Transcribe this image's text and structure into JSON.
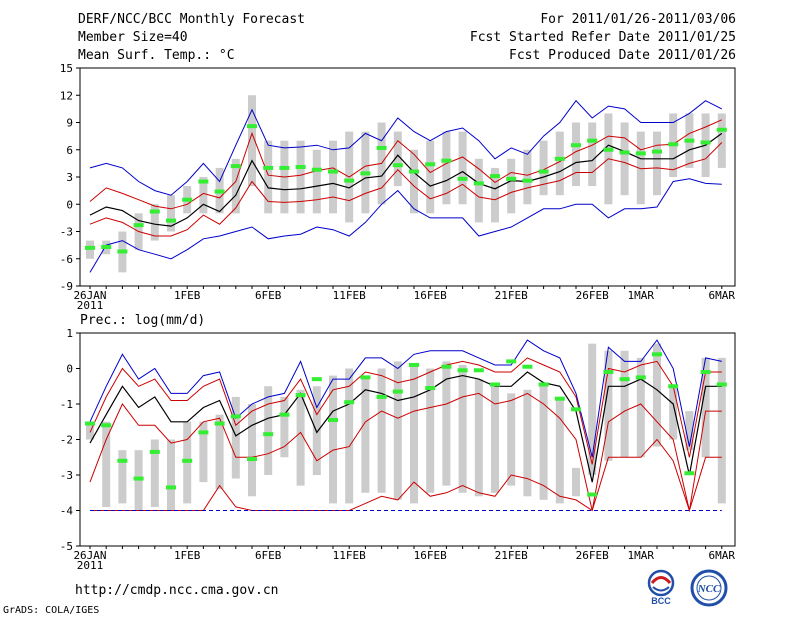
{
  "header": {
    "title": "DERF/NCC/BCC Monthly Forecast",
    "member_size": "Member Size=40",
    "variable1": "Mean Surf. Temp.: °C",
    "for_period": "For 2011/01/26-2011/03/06",
    "fcst_started": "Fcst Started Refer Date 2011/01/25",
    "fcst_produced": "Fcst Produced Date 2011/01/26"
  },
  "footer": {
    "url": "http://cmdp.ncc.cma.gov.cn",
    "grads": "GrADS: COLA/IGES",
    "logo_left_text": "BCC",
    "logo_right_text": "NCC"
  },
  "colors": {
    "bar": "#cccccc",
    "ensemble_mean": "#000000",
    "spread_inner": "#cc0000",
    "spread_outer": "#0000cc",
    "marker": "#33ee33",
    "zero_dash": "#0000cc"
  },
  "chart_data": [
    {
      "type": "line",
      "title": "Mean Surf. Temp.: °C",
      "xlabel": "",
      "ylabel": "°C",
      "ylim": [
        -9,
        15
      ],
      "yticks": [
        -9,
        -6,
        -3,
        0,
        3,
        6,
        9,
        12,
        15
      ],
      "x_tick_labels": [
        {
          "day": 0,
          "label": "26JAN"
        },
        {
          "day": 6,
          "label": "1FEB"
        },
        {
          "day": 11,
          "label": "6FEB"
        },
        {
          "day": 16,
          "label": "11FEB"
        },
        {
          "day": 21,
          "label": "16FEB"
        },
        {
          "day": 26,
          "label": "21FEB"
        },
        {
          "day": 31,
          "label": "26FEB"
        },
        {
          "day": 34,
          "label": "1MAR"
        },
        {
          "day": 39,
          "label": "6MAR"
        }
      ],
      "year_label": "2011",
      "bars_low": [
        -6,
        -5.5,
        -7.5,
        -5,
        -4,
        -3,
        -1,
        -1,
        -1,
        -1,
        2,
        -1,
        -1,
        -1,
        -1,
        -1,
        -2,
        -1,
        0,
        2,
        -1,
        -1,
        0,
        0,
        -2,
        -2,
        -1,
        0,
        1,
        1,
        2,
        2,
        0,
        1,
        0,
        1,
        3,
        4,
        3,
        4
      ],
      "bars_high": [
        -4,
        -4,
        -3,
        -1,
        0,
        1,
        2,
        3,
        4,
        5,
        12,
        7,
        7,
        7,
        6,
        7,
        8,
        8,
        9,
        8,
        6,
        7,
        8,
        8,
        5,
        4,
        5,
        6,
        7,
        8,
        9,
        9,
        10,
        9,
        8,
        8,
        10,
        10,
        10,
        10
      ],
      "series": [
        {
          "name": "ensemble mean",
          "values": [
            -1.2,
            -0.3,
            -0.7,
            -1.8,
            -2.2,
            -2.4,
            -1.5,
            0.0,
            -0.8,
            1.0,
            4.8,
            1.8,
            1.6,
            1.7,
            2.0,
            2.3,
            1.8,
            2.9,
            3.1,
            5.4,
            3.5,
            2.0,
            2.6,
            3.6,
            2.3,
            1.7,
            2.6,
            2.5,
            3.0,
            3.6,
            4.6,
            4.8,
            6.5,
            5.8,
            5.0,
            5.0,
            5.0,
            6.0,
            6.5,
            7.8
          ]
        },
        {
          "name": "upper inner",
          "values": [
            0.3,
            1.8,
            1.2,
            0.5,
            -0.2,
            -0.5,
            0.0,
            1.2,
            0.7,
            2.5,
            7.8,
            3.2,
            3.0,
            3.2,
            3.7,
            4.0,
            3.0,
            4.2,
            4.5,
            7.0,
            5.5,
            3.5,
            4.5,
            5.2,
            3.9,
            2.4,
            3.5,
            3.2,
            3.8,
            4.7,
            5.8,
            6.5,
            7.5,
            7.3,
            6.0,
            6.5,
            6.6,
            7.8,
            8.5,
            9.3
          ]
        },
        {
          "name": "lower inner",
          "values": [
            -2.2,
            -1.5,
            -2.0,
            -3.0,
            -3.5,
            -3.5,
            -2.8,
            -1.2,
            -2.2,
            -0.4,
            2.5,
            0.3,
            0.2,
            0.3,
            0.5,
            0.8,
            0.4,
            1.2,
            1.8,
            3.8,
            2.0,
            0.6,
            1.2,
            2.2,
            0.8,
            0.5,
            1.3,
            1.8,
            2.2,
            2.6,
            3.5,
            3.5,
            5.0,
            4.6,
            3.9,
            4.0,
            3.8,
            4.5,
            5.0,
            6.8
          ]
        },
        {
          "name": "upper outer",
          "values": [
            4.0,
            4.5,
            4.0,
            2.5,
            1.5,
            1.0,
            2.5,
            4.5,
            2.5,
            6.5,
            10.4,
            6.5,
            6.2,
            6.3,
            6.5,
            6.0,
            6.2,
            7.8,
            7.0,
            9.5,
            8.0,
            7.0,
            8.0,
            8.4,
            7.0,
            5.0,
            6.2,
            5.5,
            7.5,
            9.0,
            11.4,
            9.5,
            10.8,
            10.5,
            9.0,
            9.0,
            9.0,
            10.0,
            11.4,
            10.5
          ]
        },
        {
          "name": "lower outer",
          "values": [
            -7.5,
            -4.5,
            -4.0,
            -5.0,
            -5.5,
            -6.0,
            -5.0,
            -3.8,
            -3.5,
            -3.0,
            -2.5,
            -3.8,
            -3.5,
            -3.3,
            -2.5,
            -2.8,
            -3.5,
            -2.0,
            0.0,
            1.5,
            -0.5,
            -1.5,
            -1.5,
            -1.5,
            -3.5,
            -3.0,
            -2.5,
            -1.5,
            -0.5,
            -0.5,
            0.0,
            0.0,
            -1.5,
            -0.5,
            -0.5,
            -0.3,
            2.5,
            2.8,
            2.3,
            2.2
          ]
        }
      ],
      "markers": [
        -4.8,
        -4.7,
        -5.2,
        -2.3,
        -0.8,
        -1.8,
        0.5,
        2.5,
        1.4,
        4.2,
        8.6,
        4.0,
        4.0,
        4.1,
        3.8,
        3.6,
        2.6,
        3.4,
        6.2,
        4.3,
        3.6,
        4.4,
        4.8,
        2.8,
        2.3,
        3.1,
        2.8,
        2.6,
        3.6,
        5.0,
        6.5,
        7.0,
        6.0,
        5.7,
        5.6,
        5.8,
        6.6,
        7.0,
        6.8,
        8.2
      ]
    },
    {
      "type": "line",
      "title": "Prec.: log(mm/d)",
      "xlabel": "",
      "ylabel": "log(mm/d)",
      "ylim": [
        -5,
        1
      ],
      "yticks": [
        -5,
        -4,
        -3,
        -2,
        -1,
        0,
        1
      ],
      "x_tick_labels": [
        {
          "day": 0,
          "label": "26JAN"
        },
        {
          "day": 6,
          "label": "1FEB"
        },
        {
          "day": 11,
          "label": "6FEB"
        },
        {
          "day": 16,
          "label": "11FEB"
        },
        {
          "day": 21,
          "label": "16FEB"
        },
        {
          "day": 26,
          "label": "21FEB"
        },
        {
          "day": 31,
          "label": "26FEB"
        },
        {
          "day": 34,
          "label": "1MAR"
        },
        {
          "day": 39,
          "label": "6MAR"
        }
      ],
      "year_label": "2011",
      "bars_low": [
        -2.0,
        -3.9,
        -3.8,
        -4.0,
        -3.9,
        -4.0,
        -3.8,
        -3.2,
        -3.4,
        -3.1,
        -3.6,
        -3.0,
        -2.5,
        -3.3,
        -3.0,
        -3.8,
        -3.8,
        -3.5,
        -3.5,
        -3.7,
        -3.8,
        -3.5,
        -3.3,
        -3.5,
        -3.6,
        -3.5,
        -3.3,
        -3.6,
        -3.7,
        -3.8,
        -3.6,
        -3.0,
        -2.6,
        -2.5,
        -2.5,
        -2.2,
        -2.0,
        -2.3,
        -2.5,
        -3.8
      ],
      "bars_high": [
        -1.5,
        -1.5,
        -2.3,
        -2.3,
        -2.0,
        -2.0,
        -1.5,
        -1.5,
        -1.3,
        -0.8,
        -1.0,
        -0.5,
        -0.8,
        -0.6,
        -0.5,
        -0.2,
        0.0,
        -0.2,
        0.0,
        0.2,
        0.1,
        0.0,
        0.2,
        0.1,
        -0.3,
        -0.5,
        -0.7,
        -0.6,
        -0.5,
        -0.8,
        -2.8,
        0.7,
        0.5,
        0.5,
        0.3,
        0.7,
        -0.5,
        -1.2,
        0.3,
        0.3
      ],
      "series": [
        {
          "name": "ensemble mean",
          "values": [
            -2.1,
            -1.3,
            -0.5,
            -1.1,
            -0.8,
            -1.5,
            -1.5,
            -1.1,
            -0.9,
            -1.9,
            -1.6,
            -1.4,
            -1.3,
            -0.7,
            -1.8,
            -1.2,
            -1.0,
            -0.6,
            -0.7,
            -0.9,
            -0.8,
            -0.6,
            -0.3,
            -0.2,
            -0.3,
            -0.5,
            -0.5,
            -0.1,
            -0.4,
            -0.5,
            -1.2,
            -3.2,
            -0.5,
            -0.5,
            -0.3,
            -0.6,
            -1.0,
            -3.0,
            -0.5,
            -0.5
          ]
        },
        {
          "name": "upper inner",
          "values": [
            -1.8,
            -0.8,
            0.0,
            -0.5,
            -0.3,
            -0.9,
            -0.9,
            -0.5,
            -0.3,
            -1.6,
            -1.2,
            -1.0,
            -0.9,
            -0.3,
            -1.3,
            -0.6,
            -0.5,
            -0.1,
            -0.2,
            -0.4,
            -0.3,
            -0.1,
            0.1,
            0.2,
            0.1,
            -0.1,
            -0.1,
            0.3,
            0.1,
            -0.1,
            -0.8,
            -2.7,
            0.0,
            -0.1,
            0.1,
            0.2,
            -0.5,
            -2.5,
            -0.1,
            -0.1
          ]
        },
        {
          "name": "lower inner",
          "values": [
            -3.2,
            -2.0,
            -1.0,
            -1.6,
            -1.6,
            -2.1,
            -2.0,
            -1.5,
            -1.4,
            -2.5,
            -2.5,
            -2.4,
            -2.2,
            -1.8,
            -2.6,
            -2.3,
            -2.2,
            -1.5,
            -1.2,
            -1.4,
            -1.2,
            -1.1,
            -1.0,
            -0.8,
            -0.7,
            -1.0,
            -0.9,
            -0.7,
            -1.0,
            -1.4,
            -2.0,
            -4.0,
            -1.5,
            -1.2,
            -1.0,
            -1.5,
            -2.0,
            -4.0,
            -1.2,
            -1.2
          ]
        },
        {
          "name": "upper outer",
          "values": [
            -1.5,
            -0.5,
            0.4,
            -0.3,
            0.0,
            -0.7,
            -0.7,
            -0.2,
            -0.1,
            -1.4,
            -1.0,
            -0.8,
            -0.7,
            0.2,
            -1.1,
            -0.3,
            -0.3,
            0.3,
            0.3,
            0.0,
            0.4,
            0.5,
            0.5,
            0.5,
            0.3,
            0.1,
            0.1,
            0.8,
            0.5,
            0.3,
            -0.7,
            -2.5,
            0.6,
            0.2,
            0.2,
            0.8,
            0.0,
            -2.2,
            0.3,
            0.2
          ]
        },
        {
          "name": "lower outer",
          "values": [
            -4.0,
            -4.0,
            -4.0,
            -4.0,
            -4.0,
            -4.0,
            -4.0,
            -4.0,
            -3.3,
            -3.9,
            -4.0,
            -4.0,
            -4.0,
            -4.0,
            -4.0,
            -4.0,
            -4.0,
            -3.8,
            -3.6,
            -3.7,
            -3.2,
            -3.6,
            -3.5,
            -3.3,
            -3.5,
            -3.6,
            -3.0,
            -3.1,
            -3.3,
            -3.6,
            -3.7,
            -4.0,
            -2.5,
            -2.5,
            -2.5,
            -2.0,
            -2.6,
            -4.0,
            -2.5,
            -2.5
          ]
        },
        {
          "name": "lowest",
          "values": [
            -4.0,
            -4.0,
            -4.0,
            -4.0,
            -4.0,
            -4.0,
            -4.0,
            -4.0,
            -4.0,
            -4.0,
            -4.0,
            -4.0,
            -4.0,
            -4.0,
            -4.0,
            -4.0,
            -4.0,
            -4.0,
            -4.0,
            -4.0,
            -4.0,
            -4.0,
            -4.0,
            -4.0,
            -4.0,
            -4.0,
            -4.0,
            -4.0,
            -4.0,
            -4.0,
            -4.0,
            -4.0,
            -4.0,
            -4.0,
            -4.0,
            -4.0,
            -4.0,
            -4.0,
            -4.0,
            -4.0
          ]
        }
      ],
      "markers": [
        -1.55,
        -1.6,
        -2.6,
        -3.1,
        -2.35,
        -3.35,
        -2.6,
        -1.8,
        -1.55,
        -1.35,
        -2.55,
        -1.85,
        -1.3,
        -0.75,
        -0.3,
        -1.45,
        -0.95,
        -0.25,
        -0.8,
        -0.65,
        0.1,
        -0.55,
        0.05,
        -0.05,
        -0.05,
        -0.45,
        0.2,
        0.05,
        -0.45,
        -0.85,
        -1.15,
        -3.55,
        -0.1,
        -0.3,
        -0.25,
        0.4,
        -0.5,
        -2.95,
        -0.1,
        -0.45
      ]
    }
  ]
}
